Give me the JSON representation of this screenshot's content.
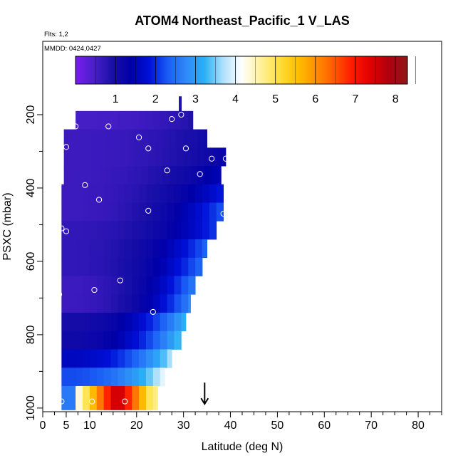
{
  "chart_data": {
    "type": "heatmap",
    "title": "ATOM4 Northeast_Pacific_1 V_LAS",
    "flights_label": "Flts: 1,2",
    "dates_label": "MMDD: 0424,0427",
    "xlabel": "Latitude (deg N)",
    "ylabel": "PSXC (mbar)",
    "xlim": [
      0,
      85
    ],
    "ylim": [
      1010,
      0
    ],
    "x_ticks": [
      0,
      5,
      10,
      20,
      30,
      40,
      50,
      60,
      70,
      80
    ],
    "x_minor_ticks": [
      2.5,
      7.5,
      12.5,
      15,
      17.5,
      22.5,
      25,
      27.5,
      32.5,
      35,
      37.5,
      42.5,
      45,
      47.5,
      52.5,
      55,
      57.5,
      62.5,
      65,
      67.5,
      72.5,
      75,
      77.5,
      82.5,
      85
    ],
    "y_ticks": [
      200,
      400,
      600,
      800,
      1000
    ],
    "y_minor_ticks": [
      300,
      500,
      700,
      900
    ],
    "colorbar": {
      "min": 0,
      "max": 8.3,
      "ticks": [
        1,
        2,
        3,
        4,
        5,
        6,
        7,
        8
      ],
      "colors": [
        "#7a1cf0",
        "#4a1fc8",
        "#1a0fa8",
        "#0000a8",
        "#0010d8",
        "#1a5cf5",
        "#2f8af8",
        "#2ab0f5",
        "#aee0fb",
        "#ffffff",
        "#fff2a0",
        "#ffe040",
        "#ffc000",
        "#ff9200",
        "#ff5a00",
        "#ff1a00",
        "#e00000",
        "#b00010",
        "#901818"
      ],
      "marker_label": ""
    },
    "marker": {
      "latitude": 34.5,
      "pressure": 985,
      "symbol": "arrow-down"
    },
    "rows": [
      {
        "p_top": 190,
        "p_bot": 240,
        "x0": 7,
        "x1": 32,
        "v0": 0.5,
        "v1": 0.9
      },
      {
        "p_top": 240,
        "p_bot": 290,
        "x0": 4.5,
        "x1": 35,
        "v0": 0.6,
        "v1": 1.1
      },
      {
        "p_top": 290,
        "p_bot": 340,
        "x0": 4.5,
        "x1": 39,
        "v0": 0.6,
        "v1": 1.3
      },
      {
        "p_top": 340,
        "p_bot": 390,
        "x0": 4.5,
        "x1": 38,
        "v0": 0.6,
        "v1": 1.6
      },
      {
        "p_top": 390,
        "p_bot": 440,
        "x0": 4,
        "x1": 38.5,
        "v0": 0.6,
        "v1": 2.0
      },
      {
        "p_top": 440,
        "p_bot": 490,
        "x0": 4,
        "x1": 38.5,
        "v0": 0.6,
        "v1": 2.4
      },
      {
        "p_top": 490,
        "p_bot": 540,
        "x0": 4,
        "x1": 37,
        "v0": 0.7,
        "v1": 2.2
      },
      {
        "p_top": 540,
        "p_bot": 590,
        "x0": 4,
        "x1": 35,
        "v0": 0.7,
        "v1": 2.5
      },
      {
        "p_top": 590,
        "p_bot": 640,
        "x0": 4,
        "x1": 34,
        "v0": 0.7,
        "v1": 2.6
      },
      {
        "p_top": 640,
        "p_bot": 690,
        "x0": 4,
        "x1": 32.5,
        "v0": 0.6,
        "v1": 2.8
      },
      {
        "p_top": 690,
        "p_bot": 740,
        "x0": 4,
        "x1": 31.5,
        "v0": 0.6,
        "v1": 2.9
      },
      {
        "p_top": 740,
        "p_bot": 790,
        "x0": 4,
        "x1": 30.5,
        "v0": 1.0,
        "v1": 3.4
      },
      {
        "p_top": 790,
        "p_bot": 840,
        "x0": 4,
        "x1": 29.5,
        "v0": 1.1,
        "v1": 3.6
      },
      {
        "p_top": 840,
        "p_bot": 890,
        "x0": 4,
        "x1": 27.5,
        "v0": 1.6,
        "v1": 3.9
      },
      {
        "p_top": 890,
        "p_bot": 940,
        "x0": 4,
        "x1": 26,
        "v0": 2.2,
        "v1": 4.2
      },
      {
        "p_top": 940,
        "p_bot": 1005,
        "x0": 4,
        "x1": 24.5,
        "v0": 2.6,
        "v1": 5.0
      }
    ],
    "hot_row": {
      "p_top": 945,
      "p_bot": 1005,
      "x0": 7,
      "x1": 24.5,
      "peak_lat": 16,
      "peak_value": 7.8
    },
    "spike": {
      "lat": 29.3,
      "p_top": 150,
      "p_bot": 210,
      "value": 0.9
    },
    "points": [
      {
        "lat": 7,
        "p": 232
      },
      {
        "lat": 14,
        "p": 232
      },
      {
        "lat": 5,
        "p": 288
      },
      {
        "lat": 20.5,
        "p": 262
      },
      {
        "lat": 27.5,
        "p": 212
      },
      {
        "lat": 29.5,
        "p": 200
      },
      {
        "lat": 22.5,
        "p": 292
      },
      {
        "lat": 30.5,
        "p": 292
      },
      {
        "lat": 36,
        "p": 320
      },
      {
        "lat": 39,
        "p": 320
      },
      {
        "lat": 26.5,
        "p": 352
      },
      {
        "lat": 33.5,
        "p": 362
      },
      {
        "lat": 9,
        "p": 392
      },
      {
        "lat": 12,
        "p": 432
      },
      {
        "lat": 22.5,
        "p": 462
      },
      {
        "lat": 38.5,
        "p": 470
      },
      {
        "lat": 4,
        "p": 510
      },
      {
        "lat": 5,
        "p": 518
      },
      {
        "lat": 16.5,
        "p": 652
      },
      {
        "lat": 11,
        "p": 678
      },
      {
        "lat": 3.5,
        "p": 690
      },
      {
        "lat": 23.5,
        "p": 738
      },
      {
        "lat": 4,
        "p": 982
      },
      {
        "lat": 10.5,
        "p": 982
      },
      {
        "lat": 17.5,
        "p": 982
      }
    ]
  }
}
